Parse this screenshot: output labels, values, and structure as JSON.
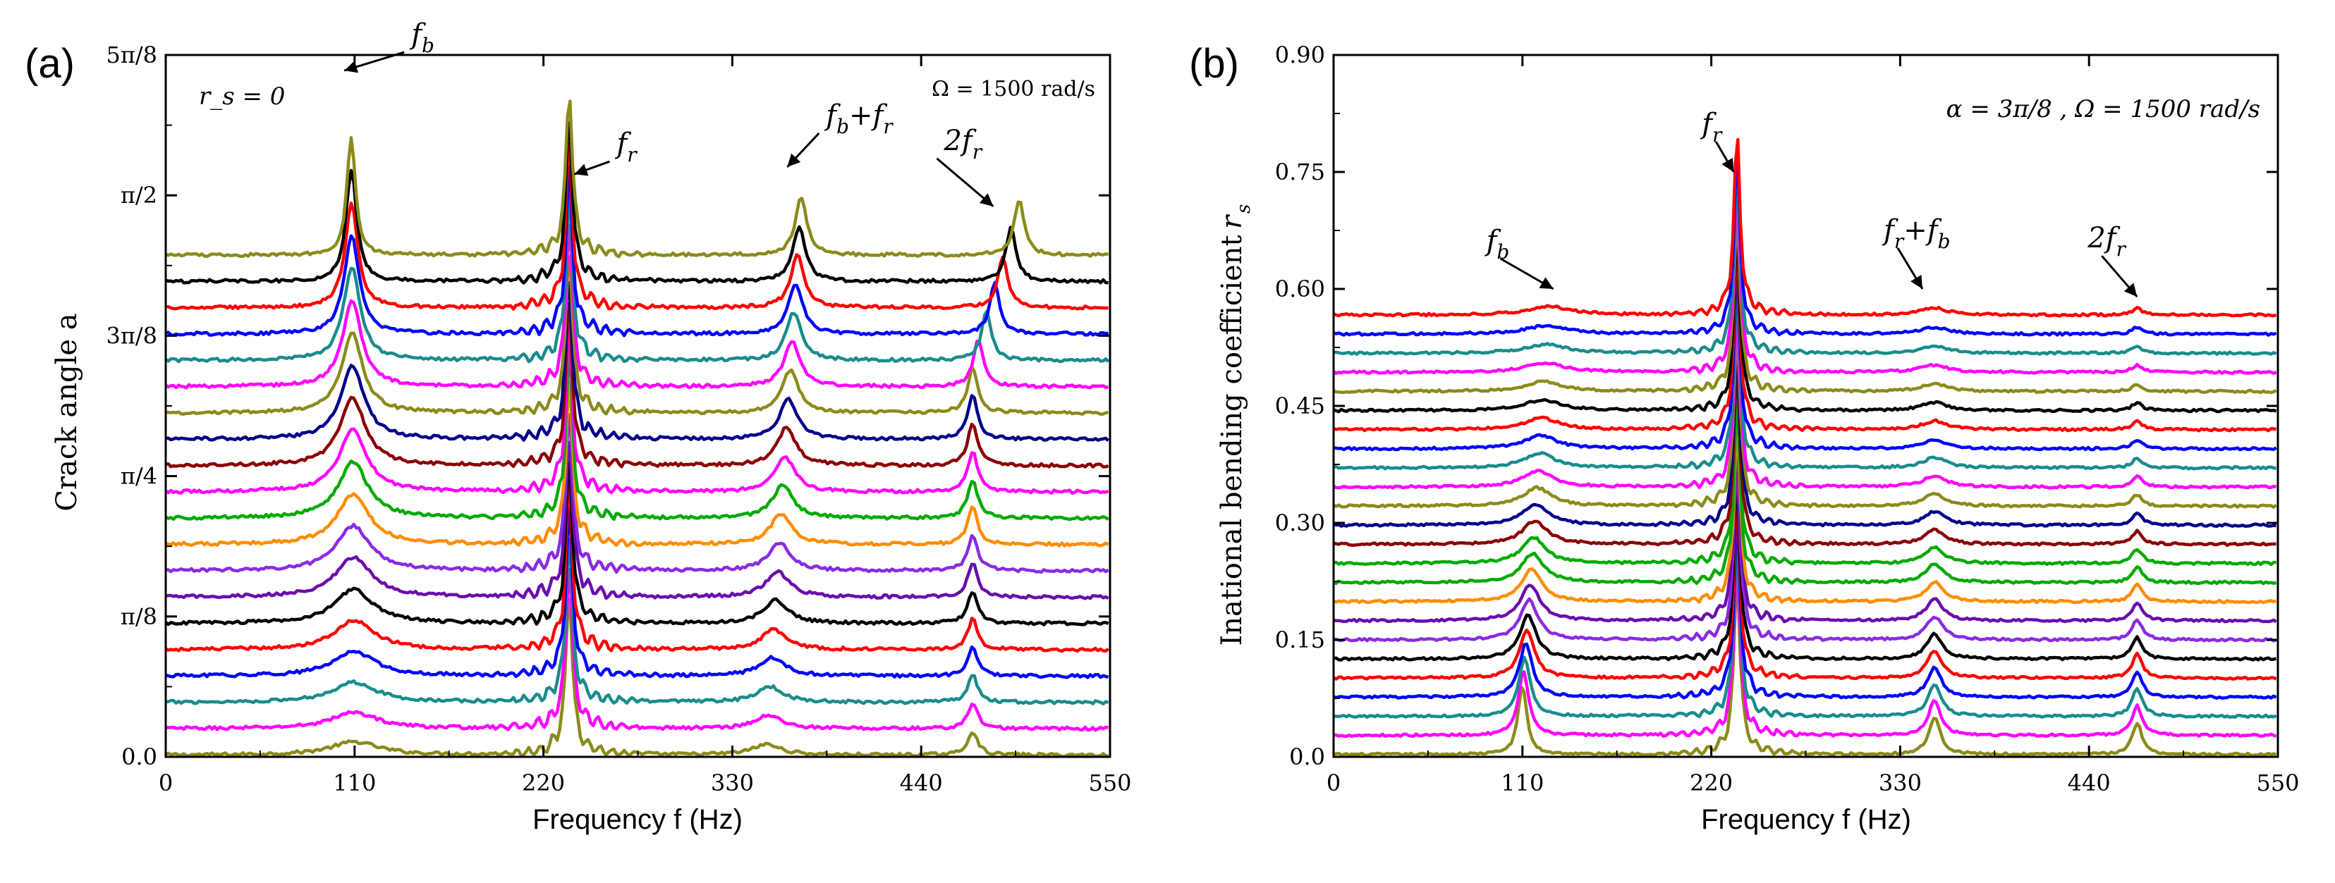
{
  "chart_data": [
    {
      "type": "line",
      "panel_label": "(a)",
      "xlabel": "Frequency f  (Hz)",
      "ylabel": "Crack angle a",
      "xlim": [
        0,
        550
      ],
      "ylim": [
        0,
        1.9635
      ],
      "x_ticks": [
        0,
        110,
        220,
        330,
        440,
        550
      ],
      "x_tick_labels": [
        "0",
        "110",
        "220",
        "330",
        "440",
        "550"
      ],
      "y_ticks": [
        0,
        0.3927,
        0.7854,
        1.1781,
        1.5708,
        1.9635
      ],
      "y_tick_labels": [
        "0.0",
        "π/8",
        "π/4",
        "3π/8",
        "π/2",
        "5π/8"
      ],
      "param_text": "r_s = 0",
      "speed_text": "Ω = 1500  rad/s",
      "n_series": 20,
      "curve_spacing": 0.0736,
      "series_colors": [
        "#8b8b1a",
        "#ff00ff",
        "#1a8c8c",
        "#0000ff",
        "#ff0000",
        "#000000",
        "#6a0dad",
        "#8a2be2",
        "#ff8c00",
        "#00aa00",
        "#ff00ff",
        "#8b0000",
        "#00008b",
        "#8b8b1a",
        "#ff00ff",
        "#1a8c8c",
        "#0000ff",
        "#ff0000",
        "#000000"
      ],
      "peaks": {
        "f_b_start": 110,
        "f_b_end": 108,
        "f_r": 235,
        "f_b_plus_f_r": 360,
        "two_f_r": 470
      },
      "annotations": [
        {
          "label": "f",
          "sub": "b",
          "target_hz": 104,
          "target_level": 1.92
        },
        {
          "label": "f",
          "sub": "r",
          "target_hz": 238,
          "target_level": 1.63
        },
        {
          "label": "f",
          "sub": "b",
          "plus": "+f",
          "plus_sub": "r",
          "target_hz": 362,
          "target_level": 1.65
        },
        {
          "label": "2f",
          "sub": "r",
          "target_hz": 482,
          "target_level": 1.54
        }
      ]
    },
    {
      "type": "line",
      "panel_label": "(b)",
      "xlabel": "Frequency f  (Hz)",
      "ylabel": "Inational bending coefficient",
      "ylabel_symbol": "r",
      "ylabel_symbol_sub": "s",
      "xlim": [
        0,
        550
      ],
      "ylim": [
        0,
        0.9
      ],
      "x_ticks": [
        0,
        110,
        220,
        330,
        440,
        550
      ],
      "x_tick_labels": [
        "0",
        "110",
        "220",
        "330",
        "440",
        "550"
      ],
      "y_ticks": [
        0,
        0.15,
        0.3,
        0.45,
        0.6,
        0.75,
        0.9
      ],
      "y_tick_labels": [
        "0.0",
        "0.15",
        "0.30",
        "0.45",
        "0.60",
        "0.75",
        "0.90"
      ],
      "param_text": "α = 3π/8 ,  Ω = 1500  rad/s",
      "n_series": 24,
      "curve_spacing": 0.0245,
      "series_colors": [
        "#8b8b1a",
        "#ff00ff",
        "#1a8c8c",
        "#0000ff",
        "#ff0000",
        "#000000",
        "#8a2be2",
        "#6a0dad",
        "#ff8c00",
        "#00aa00",
        "#00aa00",
        "#8b0000",
        "#00008b",
        "#8b8b1a",
        "#ff00ff",
        "#1a8c8c",
        "#0000ff",
        "#ff0000",
        "#000000"
      ],
      "peaks": {
        "f_b_start": 110,
        "f_b_end": 125,
        "f_r": 235,
        "f_r_plus_f_b": 350,
        "two_f_r": 468
      },
      "annotations": [
        {
          "label": "f",
          "sub": "b",
          "target_hz": 128,
          "target_level": 0.6
        },
        {
          "label": "f",
          "sub": "r",
          "target_hz": 233,
          "target_level": 0.75
        },
        {
          "label": "f",
          "sub": "r",
          "plus": "+f",
          "plus_sub": "b",
          "target_hz": 343,
          "target_level": 0.6
        },
        {
          "label": "2f",
          "sub": "r",
          "target_hz": 468,
          "target_level": 0.59
        }
      ]
    }
  ]
}
